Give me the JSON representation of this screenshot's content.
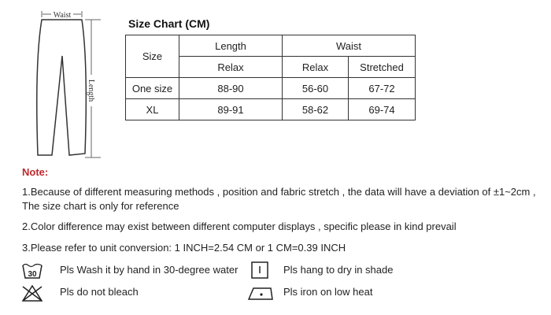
{
  "diagram": {
    "waist_label": "Waist",
    "length_label": "Length"
  },
  "title": "Size Chart (CM)",
  "table": {
    "size_header": "Size",
    "length_header": "Length",
    "waist_header": "Waist",
    "sub_headers": [
      "Relax",
      "Relax",
      "Stretched"
    ],
    "rows": [
      {
        "size": "One size",
        "length_relax": "88-90",
        "waist_relax": "56-60",
        "waist_stretched": "67-72"
      },
      {
        "size": "XL",
        "length_relax": "89-91",
        "waist_relax": "58-62",
        "waist_stretched": "69-74"
      }
    ]
  },
  "note": {
    "label": "Note:",
    "lines": [
      "1.Because of different measuring methods , position and fabric stretch , the data will have a deviation of ±1~2cm ,",
      "The size chart is only for reference",
      "2.Color difference may exist between different computer displays , specific please in kind prevail",
      "3.Please refer to unit conversion: 1 INCH=2.54 CM or 1 CM=0.39 INCH"
    ]
  },
  "care": [
    {
      "icon": "hand-wash-30-icon",
      "text": "Pls Wash it by hand in 30-degree water",
      "badge": "30"
    },
    {
      "icon": "hang-dry-shade-icon",
      "text": "Pls hang to dry in shade"
    },
    {
      "icon": "no-bleach-icon",
      "text": "Pls do not bleach"
    },
    {
      "icon": "iron-low-heat-icon",
      "text": "Pls iron on low heat"
    }
  ]
}
